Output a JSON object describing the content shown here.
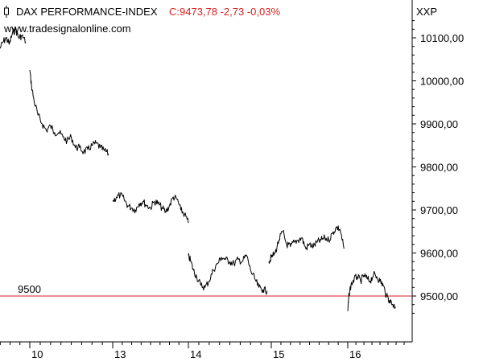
{
  "header": {
    "instrument": "DAX PERFORMANCE-INDEX",
    "quote": "C:9473,78 -2,73 -0,03%",
    "quote_color": "#d42020",
    "exchange": "XXP",
    "watermark": "www.tradesignalonline.com",
    "icon": "candlestick-icon"
  },
  "chart_data": {
    "type": "line",
    "title": "DAX PERFORMANCE-INDEX",
    "ylim": [
      9440,
      10160
    ],
    "y_ticks": [
      9500,
      9600,
      9700,
      9800,
      9900,
      10000,
      10100
    ],
    "y_tick_labels": [
      "9500,00",
      "9600,00",
      "9700,00",
      "9800,00",
      "9900,00",
      "10000,00",
      "10100,00"
    ],
    "x_ticks": [
      1,
      2,
      3,
      4,
      5,
      6
    ],
    "x_tick_labels": [
      "10",
      "13",
      "14",
      "15",
      "16"
    ],
    "x_tick_index": [
      1,
      2,
      3,
      4,
      5
    ],
    "xlim": [
      0.6,
      5.8
    ],
    "line_color": "#000000",
    "reference_line": {
      "value": 9500,
      "label": "9500",
      "color": "#d42020"
    },
    "grid": false,
    "series": [
      {
        "segments": [
          {
            "x": [
              0.62,
              0.66,
              0.7,
              0.74,
              0.78,
              0.82,
              0.86,
              0.9,
              0.95
            ],
            "y": [
              10075,
              10090,
              10100,
              10085,
              10110,
              10120,
              10100,
              10105,
              10090
            ]
          },
          {
            "x": [
              1.0,
              1.02,
              1.05,
              1.1,
              1.15,
              1.2,
              1.25,
              1.3,
              1.35,
              1.4,
              1.45,
              1.5,
              1.55,
              1.6,
              1.65,
              1.7,
              1.75,
              1.8,
              1.85,
              1.9,
              1.95
            ],
            "y": [
              10025,
              9990,
              9955,
              9920,
              9900,
              9885,
              9895,
              9880,
              9880,
              9870,
              9860,
              9870,
              9845,
              9845,
              9835,
              9840,
              9850,
              9855,
              9845,
              9838,
              9830
            ]
          },
          {
            "x": [
              2.0,
              2.05,
              2.1,
              2.15,
              2.2,
              2.25,
              2.3,
              2.35,
              2.4,
              2.45,
              2.5,
              2.55,
              2.6,
              2.65,
              2.7,
              2.75,
              2.8,
              2.85,
              2.9,
              2.95,
              3.0
            ],
            "y": [
              9720,
              9730,
              9735,
              9725,
              9710,
              9705,
              9700,
              9715,
              9720,
              9710,
              9705,
              9720,
              9715,
              9705,
              9695,
              9710,
              9730,
              9725,
              9700,
              9690,
              9670
            ]
          },
          {
            "x": [
              3.0,
              3.03,
              3.06,
              3.1,
              3.15,
              3.2,
              3.25,
              3.3,
              3.35,
              3.4,
              3.45,
              3.5,
              3.55,
              3.6,
              3.65,
              3.7,
              3.75,
              3.8,
              3.85,
              3.9,
              3.95
            ],
            "y": [
              9595,
              9580,
              9560,
              9545,
              9525,
              9520,
              9535,
              9560,
              9575,
              9590,
              9585,
              9580,
              9575,
              9585,
              9580,
              9595,
              9560,
              9540,
              9520,
              9515,
              9512
            ]
          },
          {
            "x": [
              3.97,
              4.0,
              4.05,
              4.1,
              4.15,
              4.2,
              4.25,
              4.3,
              4.35,
              4.4,
              4.45,
              4.5,
              4.55,
              4.6,
              4.65,
              4.7,
              4.75,
              4.8,
              4.85,
              4.9,
              4.95
            ],
            "y": [
              9580,
              9590,
              9600,
              9630,
              9650,
              9620,
              9615,
              9625,
              9630,
              9635,
              9610,
              9620,
              9615,
              9625,
              9630,
              9635,
              9630,
              9645,
              9660,
              9655,
              9610
            ]
          },
          {
            "x": [
              5.0,
              5.02,
              5.05,
              5.1,
              5.15,
              5.2,
              5.25,
              5.3,
              5.35,
              5.4,
              5.45,
              5.5,
              5.55,
              5.6,
              5.65,
              5.7,
              5.74
            ],
            "y": [
              9465,
              9505,
              9525,
              9540,
              9545,
              9535,
              9548,
              9540,
              9535,
              9550,
              9545,
              9535,
              9525,
              9500,
              9490,
              9480,
              9475
            ]
          }
        ]
      }
    ]
  }
}
